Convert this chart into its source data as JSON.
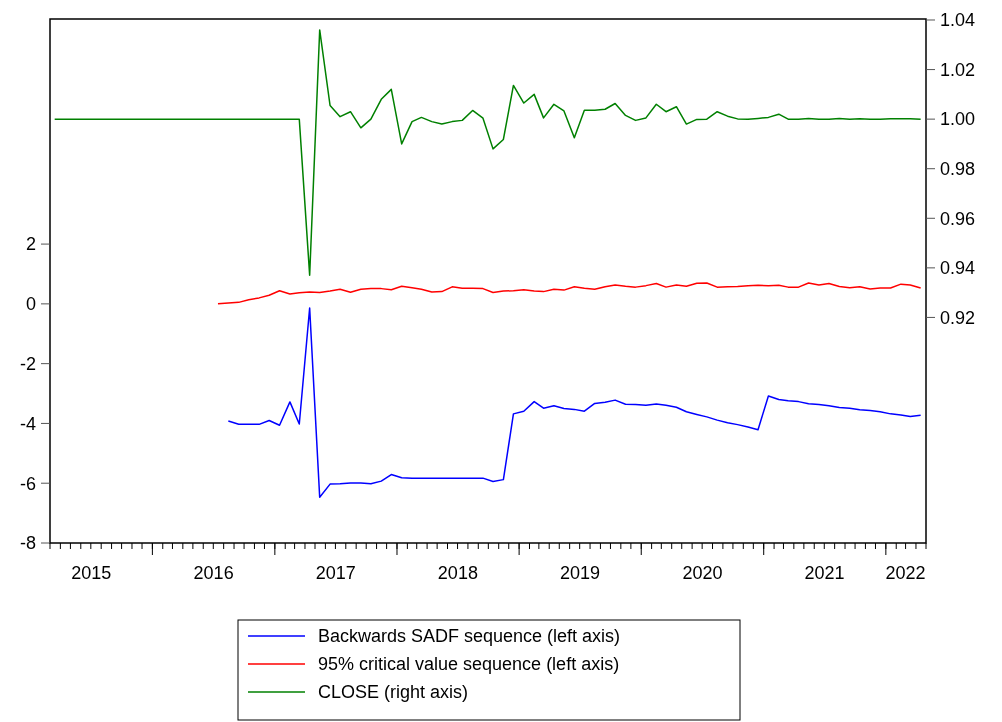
{
  "chart_data": {
    "type": "line",
    "x": [
      "2015-03-15",
      "2015-04-15",
      "2015-05-15",
      "2015-06-15",
      "2015-07-15",
      "2015-08-15",
      "2015-09-15",
      "2015-10-15",
      "2015-11-15",
      "2015-12-15",
      "2016-01-15",
      "2016-02-15",
      "2016-03-15",
      "2016-04-15",
      "2016-05-15",
      "2016-06-15",
      "2016-07-15",
      "2016-08-15",
      "2016-09-15",
      "2016-10-15",
      "2016-11-15",
      "2016-12-15",
      "2017-01-15",
      "2017-02-15",
      "2017-03-15",
      "2017-04-15",
      "2017-05-15",
      "2017-06-15",
      "2017-07-15",
      "2017-08-15",
      "2017-09-15",
      "2017-10-15",
      "2017-11-15",
      "2017-12-15",
      "2018-01-15",
      "2018-02-15",
      "2018-03-15",
      "2018-04-15",
      "2018-05-15",
      "2018-06-15",
      "2018-07-15",
      "2018-08-15",
      "2018-09-15",
      "2018-10-15",
      "2018-11-15",
      "2018-12-15",
      "2019-01-15",
      "2019-02-15",
      "2019-03-15",
      "2019-04-15",
      "2019-05-15",
      "2019-06-15",
      "2019-07-15",
      "2019-08-15",
      "2019-09-15",
      "2019-10-15",
      "2019-11-15",
      "2019-12-15",
      "2020-01-15",
      "2020-02-15",
      "2020-03-15",
      "2020-04-15",
      "2020-05-15",
      "2020-06-15",
      "2020-07-15",
      "2020-08-15",
      "2020-09-15",
      "2020-10-15",
      "2020-11-15",
      "2020-12-15",
      "2021-01-15",
      "2021-02-15",
      "2021-03-15",
      "2021-04-15",
      "2021-05-15",
      "2021-06-15",
      "2021-07-15",
      "2021-08-15",
      "2021-09-15",
      "2021-10-15",
      "2021-11-15",
      "2021-12-15",
      "2022-01-15",
      "2022-02-15",
      "2022-03-15",
      "2022-04-15"
    ],
    "series": [
      {
        "name": "Backwards SADF sequence (left axis)",
        "color": "#0000ff",
        "values": [
          null,
          null,
          null,
          null,
          null,
          null,
          null,
          null,
          null,
          null,
          null,
          null,
          null,
          null,
          null,
          null,
          null,
          -3.92,
          -4.03,
          -4.03,
          -4.03,
          -3.9,
          -4.06,
          -3.28,
          -4.02,
          -0.14,
          -6.47,
          -6.03,
          -6.02,
          -5.99,
          -5.99,
          -6.02,
          -5.93,
          -5.71,
          -5.82,
          -5.83,
          -5.83,
          -5.83,
          -5.83,
          -5.83,
          -5.83,
          -5.83,
          -5.83,
          -5.94,
          -5.88,
          -3.68,
          -3.59,
          -3.27,
          -3.49,
          -3.41,
          -3.5,
          -3.53,
          -3.59,
          -3.33,
          -3.29,
          -3.22,
          -3.36,
          -3.37,
          -3.39,
          -3.35,
          -3.39,
          -3.46,
          -3.61,
          -3.7,
          -3.78,
          -3.89,
          -3.98,
          -4.04,
          -4.12,
          -4.21,
          -3.08,
          -3.2,
          -3.24,
          -3.27,
          -3.34,
          -3.37,
          -3.41,
          -3.47,
          -3.49,
          -3.54,
          -3.57,
          -3.61,
          -3.68,
          -3.72,
          -3.77,
          -3.73
        ]
      },
      {
        "name": "95% critical value sequence (left axis)",
        "color": "#ff0000",
        "values": [
          null,
          null,
          null,
          null,
          null,
          null,
          null,
          null,
          null,
          null,
          null,
          null,
          null,
          null,
          null,
          null,
          0.0,
          0.03,
          0.05,
          0.14,
          0.2,
          0.29,
          0.44,
          0.33,
          0.37,
          0.4,
          0.38,
          0.43,
          0.49,
          0.39,
          0.49,
          0.51,
          0.51,
          0.47,
          0.59,
          0.54,
          0.49,
          0.4,
          0.41,
          0.57,
          0.52,
          0.52,
          0.51,
          0.38,
          0.43,
          0.44,
          0.47,
          0.43,
          0.41,
          0.49,
          0.46,
          0.57,
          0.52,
          0.49,
          0.57,
          0.63,
          0.59,
          0.56,
          0.61,
          0.68,
          0.56,
          0.63,
          0.59,
          0.69,
          0.7,
          0.56,
          0.57,
          0.58,
          0.61,
          0.62,
          0.61,
          0.62,
          0.56,
          0.56,
          0.7,
          0.63,
          0.68,
          0.58,
          0.54,
          0.57,
          0.5,
          0.53,
          0.53,
          0.66,
          0.63,
          0.53
        ]
      },
      {
        "name": "CLOSE (right axis)",
        "color": "#008000",
        "axis": "y2",
        "values": [
          1.0,
          1.0,
          1.0,
          1.0,
          1.0,
          1.0,
          1.0,
          1.0,
          1.0,
          1.0,
          1.0,
          1.0,
          1.0,
          1.0,
          1.0,
          1.0,
          1.0,
          1.0,
          1.0,
          1.0,
          1.0,
          1.0,
          1.0,
          1.0,
          1.0,
          0.937,
          1.036,
          1.0055,
          1.001,
          1.003,
          0.9965,
          1.0,
          1.008,
          1.012,
          0.99,
          0.999,
          1.0007,
          0.999,
          0.998,
          0.999,
          0.9995,
          1.0035,
          1.0004,
          0.988,
          0.9918,
          1.0136,
          1.0065,
          1.01,
          1.0005,
          1.006,
          1.0033,
          0.9925,
          1.0036,
          1.0036,
          1.004,
          1.0063,
          1.0015,
          0.9995,
          1.0005,
          1.006,
          1.003,
          1.005,
          0.998,
          0.9999,
          1.0,
          1.003,
          1.0012,
          1.0001,
          1.0,
          1.0003,
          1.0007,
          1.002,
          1.0,
          1.0,
          1.0003,
          1.0,
          1.0,
          1.0003,
          1.0,
          1.0002,
          1.0,
          1.0,
          1.0002,
          1.0002,
          1.0002,
          1.0
        ]
      }
    ],
    "xlim": [
      "2015-03-01",
      "2022-05-01"
    ],
    "xticks": [
      {
        "value": "2015-07-02",
        "label": "2015"
      },
      {
        "value": "2016-01-01",
        "label": null
      },
      {
        "value": "2016-07-02",
        "label": "2016"
      },
      {
        "value": "2017-01-01",
        "label": null
      },
      {
        "value": "2017-07-02",
        "label": "2017"
      },
      {
        "value": "2018-01-01",
        "label": null
      },
      {
        "value": "2018-07-02",
        "label": "2018"
      },
      {
        "value": "2019-01-01",
        "label": null
      },
      {
        "value": "2019-07-02",
        "label": "2019"
      },
      {
        "value": "2020-01-01",
        "label": null
      },
      {
        "value": "2020-07-02",
        "label": "2020"
      },
      {
        "value": "2021-01-01",
        "label": null
      },
      {
        "value": "2021-07-02",
        "label": "2021"
      },
      {
        "value": "2022-01-01",
        "label": null
      },
      {
        "value": "2022-03-01",
        "label": "2022"
      }
    ],
    "ylim": [
      -8,
      9.53
    ],
    "yticks": [
      -8,
      -6,
      -4,
      -2,
      0,
      2
    ],
    "y2lim": [
      0.829,
      1.0404
    ],
    "y2ticks": [
      0.92,
      0.94,
      0.96,
      0.98,
      {
        "value": 1.0,
        "label": "1.00"
      },
      1.02,
      1.04
    ],
    "legend": "bottom",
    "grid": false
  }
}
